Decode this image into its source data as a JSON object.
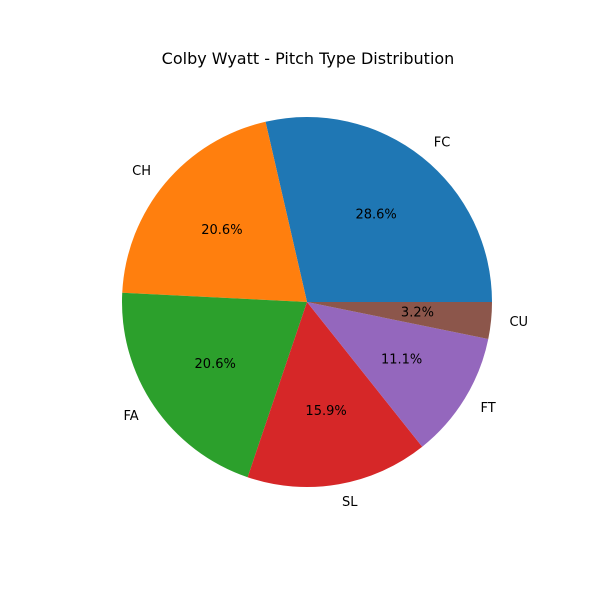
{
  "chart_data": {
    "type": "pie",
    "title": "Colby Wyatt - Pitch Type Distribution",
    "categories": [
      "FC",
      "CH",
      "FA",
      "SL",
      "FT",
      "CU"
    ],
    "values": [
      28.6,
      20.6,
      20.6,
      15.9,
      11.1,
      3.2
    ],
    "percent_labels": [
      "28.6%",
      "20.6%",
      "20.6%",
      "15.9%",
      "11.1%",
      "3.2%"
    ],
    "colors": [
      "#1f77b4",
      "#ff7f0e",
      "#2ca02c",
      "#d62728",
      "#9467bd",
      "#8c564b"
    ],
    "start_angle": 0,
    "direction": "counterclockwise",
    "legend": "none"
  }
}
